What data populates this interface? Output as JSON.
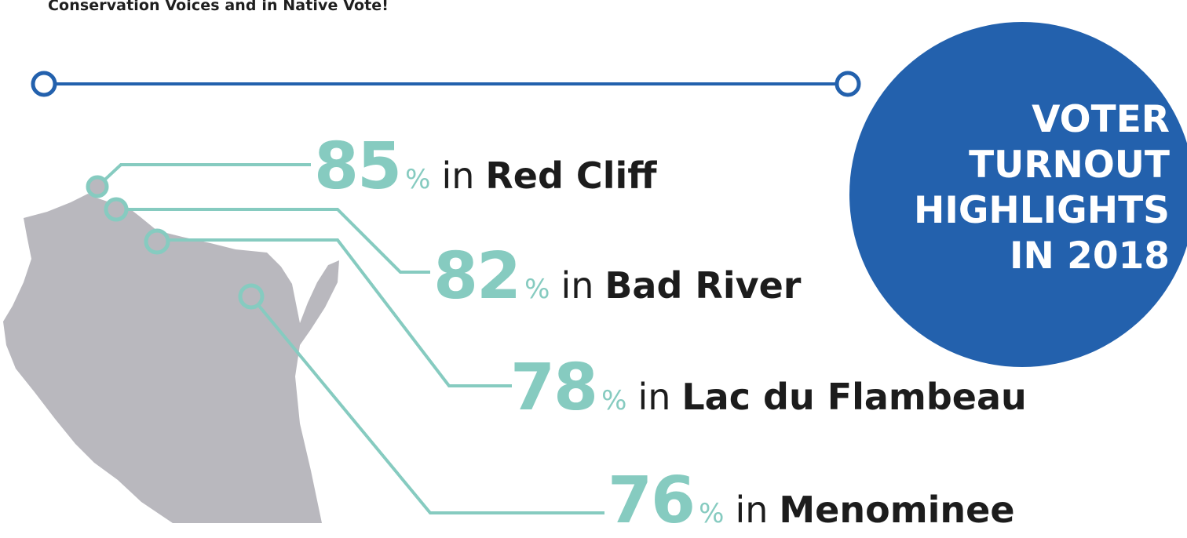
{
  "intro_text": "Conservation Voices and in Native Vote!",
  "badge": {
    "lines": [
      "VOTER",
      "TURNOUT",
      "HIGHLIGHTS",
      "IN 2018"
    ],
    "color": "#2361ad"
  },
  "stats": [
    {
      "value": "85",
      "percent_sign": "%",
      "connector": "in",
      "place": "Red Cliff"
    },
    {
      "value": "82",
      "percent_sign": "%",
      "connector": "in",
      "place": "Bad River"
    },
    {
      "value": "78",
      "percent_sign": "%",
      "connector": "in",
      "place": "Lac du Flambeau"
    },
    {
      "value": "76",
      "percent_sign": "%",
      "connector": "in",
      "place": "Menominee"
    }
  ],
  "colors": {
    "accent_teal": "#86cbc0",
    "timeline_blue": "#2361ad",
    "map_gray": "#b9b8be",
    "text_dark": "#1c1c1c"
  }
}
